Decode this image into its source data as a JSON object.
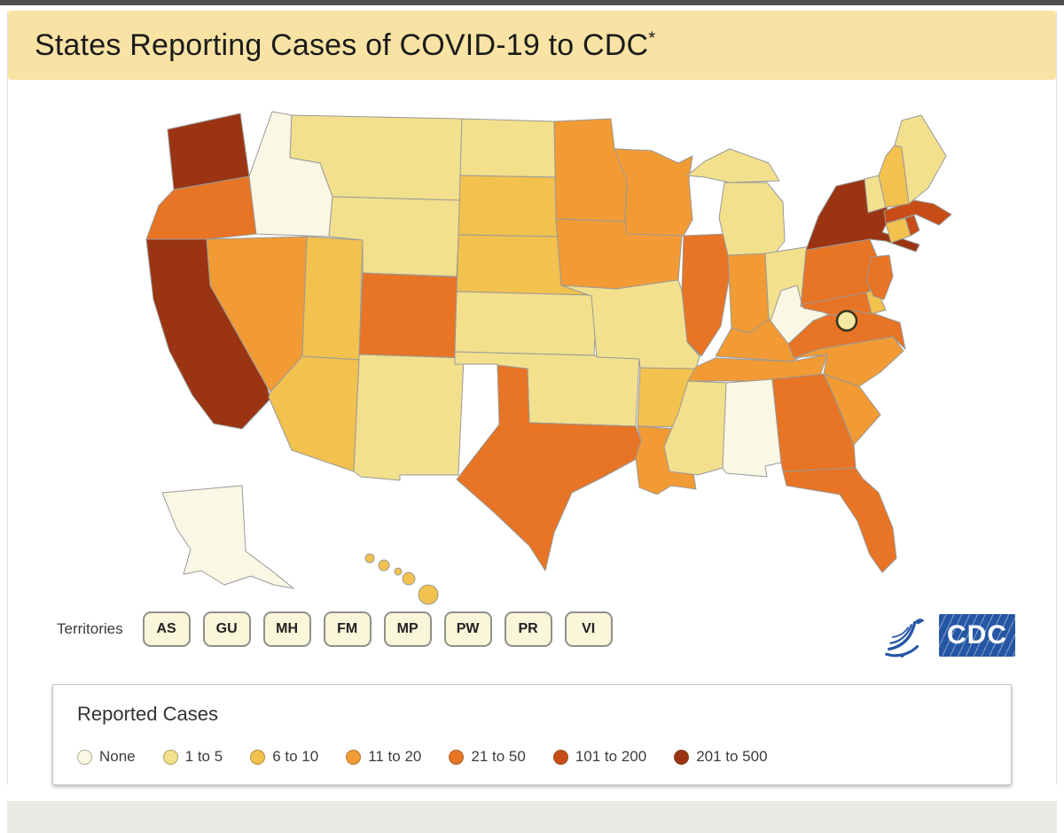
{
  "colors": {
    "top_bar": "#4e4e4e",
    "header_bg": "#f8e3a4",
    "panel_border": "#c9c9c9",
    "bottom_band": "#e8eae6",
    "button_bg": "#f9f6da",
    "logo_blue": "#2456a4",
    "state_border": "#999999"
  },
  "header": {
    "title": "States Reporting Cases of COVID-19 to CDC",
    "superscript": "*"
  },
  "territories": {
    "label": "Territories",
    "buttons": [
      "AS",
      "GU",
      "MH",
      "FM",
      "MP",
      "PW",
      "PR",
      "VI"
    ]
  },
  "logo": {
    "cdc_text": "CDC"
  },
  "legend": {
    "title": "Reported Cases",
    "items": [
      {
        "id": "none",
        "label": "None",
        "color": "#faf8e4"
      },
      {
        "id": "1to5",
        "label": "1 to 5",
        "color": "#f3e08d"
      },
      {
        "id": "6to10",
        "label": "6 to 10",
        "color": "#f2c14e"
      },
      {
        "id": "11to20",
        "label": "11 to 20",
        "color": "#f29b34"
      },
      {
        "id": "21to50",
        "label": "21 to 50",
        "color": "#e87425"
      },
      {
        "id": "101to200",
        "label": "101 to 200",
        "color": "#c74c16"
      },
      {
        "id": "201to500",
        "label": "201 to 500",
        "color": "#9a3412"
      }
    ]
  },
  "map": {
    "dc_marker": {
      "fill": "#f5e8a3",
      "stroke": "#35331c"
    },
    "states": {
      "WA": "201to500",
      "OR": "21to50",
      "CA": "201to500",
      "ID": "none",
      "NV": "11to20",
      "UT": "6to10",
      "AZ": "6to10",
      "MT": "1to5",
      "WY": "1to5",
      "CO": "21to50",
      "NM": "1to5",
      "ND": "1to5",
      "SD": "6to10",
      "NE": "6to10",
      "KS": "1to5",
      "OK": "1to5",
      "TX": "21to50",
      "MN": "11to20",
      "IA": "11to20",
      "MO": "1to5",
      "AR": "6to10",
      "LA": "11to20",
      "WI": "11to20",
      "IL": "21to50",
      "MI": "1to5",
      "IN": "11to20",
      "OH": "1to5",
      "KY": "11to20",
      "TN": "11to20",
      "MS": "1to5",
      "AL": "none",
      "GA": "21to50",
      "FL": "21to50",
      "SC": "11to20",
      "NC": "11to20",
      "VA": "21to50",
      "WV": "none",
      "MD": "21to50",
      "DE": "6to10",
      "NJ": "21to50",
      "PA": "21to50",
      "NY": "201to500",
      "CT": "6to10",
      "RI": "101to200",
      "MA": "101to200",
      "VT": "1to5",
      "NH": "6to10",
      "ME": "1to5",
      "AK": "none",
      "HI": "6to10"
    }
  }
}
